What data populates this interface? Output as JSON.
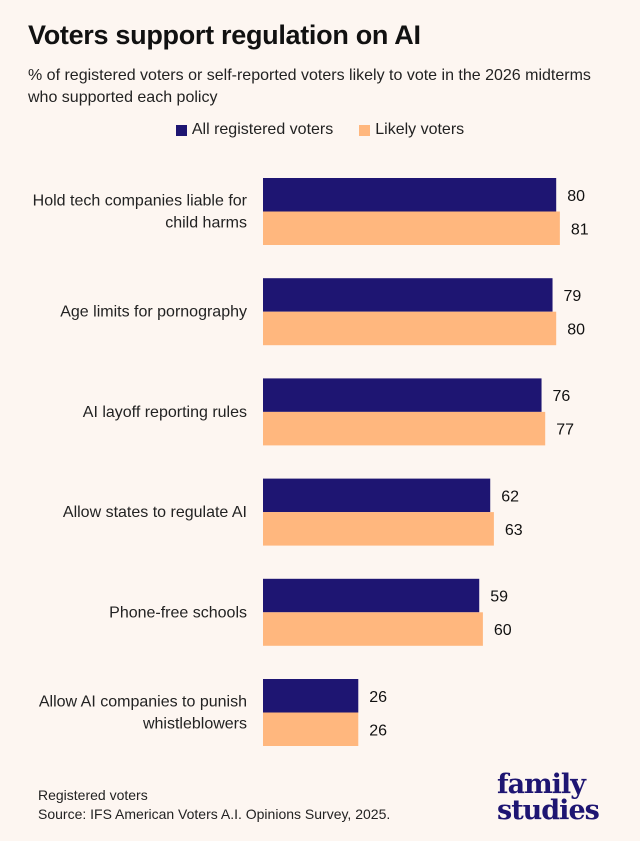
{
  "title": "Voters support regulation on AI",
  "subtitle": "% of registered voters or self-reported voters likely to vote in the 2026 midterms who supported each policy",
  "footer": {
    "note": "Registered voters",
    "source": "Source: IFS American Voters A.I. Opinions Survey, 2025."
  },
  "logo": {
    "line1": "family",
    "line2": "studies"
  },
  "chart_data": {
    "type": "bar",
    "orientation": "horizontal",
    "categories": [
      [
        "Hold tech companies liable for",
        "child harms"
      ],
      [
        "Age limits for pornography"
      ],
      [
        "AI layoff reporting rules"
      ],
      [
        "Allow states to regulate AI"
      ],
      [
        "Phone-free schools"
      ],
      [
        "Allow AI companies to punish",
        "whistleblowers"
      ]
    ],
    "series": [
      {
        "name": "All registered voters",
        "color": "#1e1572",
        "values": [
          80,
          79,
          76,
          62,
          59,
          26
        ]
      },
      {
        "name": "Likely voters",
        "color": "#ffb77e",
        "values": [
          81,
          80,
          77,
          63,
          60,
          26
        ]
      }
    ],
    "xlim": [
      0,
      100
    ],
    "grid": false,
    "legend": "top-center",
    "data_labels": true
  }
}
